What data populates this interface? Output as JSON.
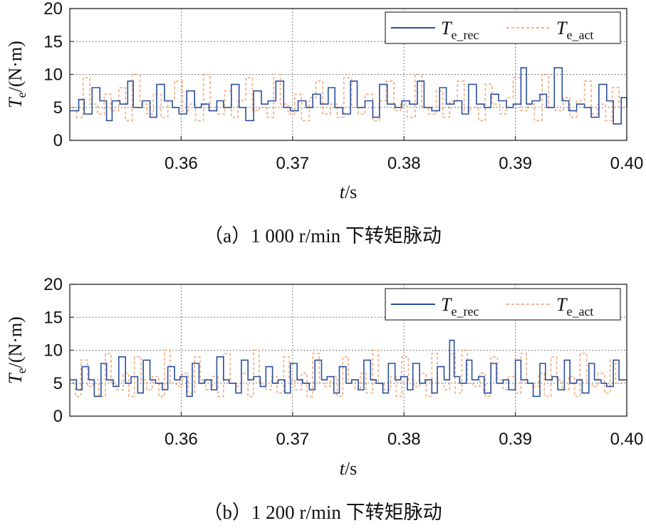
{
  "chart_data": [
    {
      "type": "line",
      "caption": "（a）1 000 r/min 下转矩脉动",
      "xlabel_var": "t",
      "xlabel_unit": "/s",
      "ylabel_var": "T",
      "ylabel_sub": "e",
      "ylabel_unit": "/(N·m)",
      "xlim": [
        0.35,
        0.4
      ],
      "ylim": [
        0,
        20
      ],
      "x_ticks": [
        "0.36",
        "0.37",
        "0.38",
        "0.39",
        "0.40"
      ],
      "y_ticks": [
        "0",
        "5",
        "10",
        "15",
        "20"
      ],
      "grid": true,
      "legend_position": "top-right",
      "series": [
        {
          "name": "T_e_rec",
          "legend_main": "T",
          "legend_sub": "e_rec",
          "color": "#2b4f9e",
          "style": "solid",
          "x": [
            0.35,
            0.3508,
            0.3513,
            0.352,
            0.3527,
            0.3533,
            0.3538,
            0.3545,
            0.3552,
            0.3557,
            0.3565,
            0.3572,
            0.3578,
            0.3585,
            0.3592,
            0.3598,
            0.3605,
            0.3612,
            0.3618,
            0.3625,
            0.3632,
            0.3638,
            0.3645,
            0.3652,
            0.3658,
            0.3665,
            0.3672,
            0.3678,
            0.3685,
            0.3692,
            0.3698,
            0.3705,
            0.3712,
            0.3718,
            0.3725,
            0.3732,
            0.3738,
            0.3745,
            0.3752,
            0.3758,
            0.3765,
            0.3772,
            0.3778,
            0.3785,
            0.3792,
            0.3798,
            0.3805,
            0.3812,
            0.3818,
            0.3825,
            0.3832,
            0.3838,
            0.3845,
            0.3852,
            0.3858,
            0.3865,
            0.3872,
            0.3878,
            0.3885,
            0.3892,
            0.3898,
            0.3905,
            0.391,
            0.3915,
            0.3922,
            0.3928,
            0.3935,
            0.3942,
            0.3948,
            0.3955,
            0.3962,
            0.3968,
            0.3975,
            0.3982,
            0.3988,
            0.3995,
            0.4
          ],
          "y": [
            4.5,
            6.2,
            4.0,
            8.0,
            6.0,
            3.0,
            6.0,
            5.5,
            9.0,
            5.0,
            6.0,
            3.5,
            8.5,
            6.0,
            5.0,
            4.0,
            7.5,
            5.0,
            5.5,
            4.5,
            6.0,
            5.0,
            8.5,
            5.0,
            3.0,
            7.5,
            5.5,
            6.0,
            9.0,
            5.0,
            4.5,
            6.0,
            5.0,
            7.0,
            5.5,
            8.0,
            5.0,
            4.0,
            9.0,
            5.0,
            6.0,
            3.5,
            8.5,
            5.5,
            5.0,
            6.0,
            5.5,
            9.0,
            5.0,
            4.5,
            8.0,
            5.5,
            6.0,
            4.0,
            8.5,
            5.5,
            5.0,
            7.0,
            6.0,
            5.0,
            5.5,
            11.0,
            5.5,
            6.0,
            7.0,
            5.0,
            11.0,
            6.0,
            4.5,
            5.5,
            5.0,
            3.5,
            8.5,
            6.0,
            2.5,
            6.5,
            5.0
          ]
        },
        {
          "name": "T_e_act",
          "legend_main": "T",
          "legend_sub": "e_act",
          "color": "#f2b48c",
          "style": "dashed",
          "x": [
            0.35,
            0.3506,
            0.3512,
            0.3518,
            0.3525,
            0.3531,
            0.3537,
            0.3544,
            0.355,
            0.3556,
            0.3563,
            0.3569,
            0.3575,
            0.3582,
            0.3588,
            0.3594,
            0.3601,
            0.3607,
            0.3613,
            0.362,
            0.3626,
            0.3632,
            0.3639,
            0.3645,
            0.3651,
            0.3658,
            0.3664,
            0.367,
            0.3677,
            0.3683,
            0.3689,
            0.3696,
            0.3702,
            0.3708,
            0.3715,
            0.3721,
            0.3727,
            0.3734,
            0.374,
            0.3746,
            0.3753,
            0.3759,
            0.3765,
            0.3772,
            0.3778,
            0.3784,
            0.3791,
            0.3797,
            0.3803,
            0.381,
            0.3816,
            0.3822,
            0.3829,
            0.3835,
            0.3841,
            0.3848,
            0.3854,
            0.386,
            0.3867,
            0.3873,
            0.3879,
            0.3886,
            0.3892,
            0.3898,
            0.3905,
            0.3911,
            0.3917,
            0.3924,
            0.393,
            0.3936,
            0.3943,
            0.3949,
            0.3955,
            0.3962,
            0.3968,
            0.3974,
            0.3981,
            0.3987,
            0.3993,
            0.4
          ],
          "y": [
            5.0,
            3.5,
            9.5,
            5.5,
            4.0,
            7.0,
            4.5,
            8.0,
            3.0,
            10.0,
            5.5,
            4.0,
            7.0,
            3.5,
            6.0,
            9.0,
            4.5,
            5.5,
            3.0,
            10.0,
            5.0,
            4.0,
            7.5,
            3.5,
            6.0,
            9.5,
            4.5,
            5.0,
            3.5,
            10.0,
            5.5,
            4.0,
            7.0,
            3.0,
            6.5,
            9.0,
            4.0,
            5.5,
            3.5,
            9.5,
            5.0,
            4.0,
            7.0,
            3.0,
            6.0,
            9.0,
            4.5,
            5.5,
            3.5,
            10.0,
            5.0,
            4.0,
            7.5,
            3.5,
            6.0,
            9.0,
            4.5,
            5.0,
            3.0,
            8.5,
            5.5,
            4.0,
            6.5,
            9.5,
            4.5,
            5.5,
            3.0,
            10.0,
            5.0,
            4.5,
            6.5,
            3.5,
            6.0,
            9.0,
            4.0,
            5.5,
            3.0,
            8.0,
            5.0,
            5.5
          ]
        }
      ]
    },
    {
      "type": "line",
      "caption": "（b）1 200 r/min 下转矩脉动",
      "xlabel_var": "t",
      "xlabel_unit": "/s",
      "ylabel_var": "T",
      "ylabel_sub": "e",
      "ylabel_unit": "/(N·m)",
      "xlim": [
        0.35,
        0.4
      ],
      "ylim": [
        0,
        20
      ],
      "x_ticks": [
        "0.36",
        "0.37",
        "0.38",
        "0.39",
        "0.40"
      ],
      "y_ticks": [
        "0",
        "5",
        "10",
        "15",
        "20"
      ],
      "grid": true,
      "legend_position": "top-right",
      "series": [
        {
          "name": "T_e_rec",
          "legend_main": "T",
          "legend_sub": "e_rec",
          "color": "#2b4f9e",
          "style": "solid",
          "x": [
            0.35,
            0.3506,
            0.3511,
            0.3517,
            0.3522,
            0.3528,
            0.3533,
            0.3539,
            0.3544,
            0.355,
            0.3555,
            0.3561,
            0.3566,
            0.3572,
            0.3577,
            0.3583,
            0.3588,
            0.3594,
            0.3599,
            0.3605,
            0.361,
            0.3616,
            0.3621,
            0.3627,
            0.3632,
            0.3638,
            0.3643,
            0.3649,
            0.3654,
            0.366,
            0.3665,
            0.3671,
            0.3676,
            0.3682,
            0.3687,
            0.3693,
            0.3698,
            0.3704,
            0.3709,
            0.3715,
            0.372,
            0.3726,
            0.3731,
            0.3737,
            0.3742,
            0.3748,
            0.3753,
            0.3759,
            0.3764,
            0.377,
            0.3775,
            0.3781,
            0.3786,
            0.3792,
            0.3797,
            0.3803,
            0.3808,
            0.3814,
            0.3819,
            0.3825,
            0.383,
            0.3836,
            0.3841,
            0.3845,
            0.385,
            0.3856,
            0.3861,
            0.3867,
            0.3872,
            0.3878,
            0.3883,
            0.3889,
            0.3894,
            0.39,
            0.3905,
            0.3911,
            0.3916,
            0.3922,
            0.3927,
            0.3933,
            0.3938,
            0.3944,
            0.3949,
            0.3955,
            0.396,
            0.3966,
            0.3971,
            0.3977,
            0.3982,
            0.3988,
            0.3993,
            0.4
          ],
          "y": [
            5.5,
            4.0,
            7.5,
            5.5,
            3.0,
            8.0,
            5.5,
            4.5,
            9.0,
            5.0,
            6.0,
            3.5,
            8.5,
            5.5,
            5.0,
            4.0,
            7.5,
            5.5,
            6.0,
            3.0,
            8.0,
            5.0,
            5.5,
            4.0,
            9.0,
            5.5,
            5.0,
            3.5,
            8.5,
            5.5,
            6.0,
            4.5,
            7.5,
            5.0,
            5.5,
            3.5,
            8.0,
            5.5,
            5.0,
            4.0,
            8.5,
            5.5,
            6.0,
            3.5,
            7.5,
            5.0,
            5.5,
            4.0,
            8.5,
            5.5,
            5.0,
            3.5,
            8.0,
            5.5,
            6.0,
            4.0,
            8.0,
            5.0,
            5.5,
            3.5,
            7.5,
            5.5,
            11.5,
            6.0,
            5.0,
            8.5,
            5.5,
            6.0,
            3.5,
            8.0,
            5.0,
            5.5,
            4.0,
            8.5,
            5.5,
            5.0,
            3.0,
            8.0,
            5.5,
            6.0,
            4.0,
            8.5,
            5.0,
            5.5,
            3.5,
            8.0,
            5.5,
            5.0,
            4.5,
            8.5,
            5.5,
            5.5
          ]
        },
        {
          "name": "T_e_act",
          "legend_main": "T",
          "legend_sub": "e_act",
          "color": "#f2b48c",
          "style": "dashed",
          "x": [
            0.35,
            0.3505,
            0.351,
            0.3516,
            0.3521,
            0.3526,
            0.3532,
            0.3537,
            0.3542,
            0.3548,
            0.3553,
            0.3558,
            0.3564,
            0.3569,
            0.3574,
            0.358,
            0.3585,
            0.359,
            0.3596,
            0.3601,
            0.3606,
            0.3612,
            0.3617,
            0.3622,
            0.3628,
            0.3633,
            0.3638,
            0.3644,
            0.3649,
            0.3654,
            0.366,
            0.3665,
            0.367,
            0.3676,
            0.3681,
            0.3686,
            0.3692,
            0.3697,
            0.3702,
            0.3708,
            0.3713,
            0.3718,
            0.3724,
            0.3729,
            0.3734,
            0.374,
            0.3745,
            0.375,
            0.3756,
            0.3761,
            0.3766,
            0.3772,
            0.3777,
            0.3782,
            0.3788,
            0.3793,
            0.3798,
            0.3804,
            0.3809,
            0.3814,
            0.382,
            0.3825,
            0.383,
            0.3836,
            0.3841,
            0.3846,
            0.3852,
            0.3857,
            0.3862,
            0.3868,
            0.3873,
            0.3878,
            0.3884,
            0.3889,
            0.3894,
            0.39,
            0.3905,
            0.391,
            0.3916,
            0.3921,
            0.3926,
            0.3932,
            0.3937,
            0.3942,
            0.3948,
            0.3953,
            0.3958,
            0.3964,
            0.3969,
            0.3974,
            0.398,
            0.3985,
            0.399,
            0.3996,
            0.4
          ],
          "y": [
            5.0,
            3.0,
            8.5,
            4.5,
            5.5,
            3.0,
            9.5,
            5.0,
            4.0,
            6.5,
            3.0,
            9.0,
            5.5,
            4.0,
            6.0,
            3.0,
            10.0,
            5.0,
            4.5,
            6.5,
            3.5,
            9.0,
            5.5,
            4.0,
            6.0,
            3.0,
            9.5,
            5.0,
            4.5,
            6.5,
            3.0,
            10.0,
            5.0,
            4.0,
            6.0,
            3.5,
            9.0,
            5.5,
            4.0,
            6.5,
            3.0,
            9.5,
            5.0,
            4.5,
            6.0,
            3.0,
            9.0,
            5.5,
            4.0,
            6.5,
            3.5,
            10.0,
            5.0,
            4.0,
            6.0,
            3.0,
            9.0,
            5.5,
            4.5,
            6.5,
            3.0,
            9.5,
            5.0,
            4.0,
            9.5,
            3.5,
            10.0,
            5.0,
            4.5,
            6.5,
            3.0,
            9.0,
            5.5,
            4.0,
            6.0,
            3.5,
            9.5,
            5.0,
            4.5,
            6.5,
            3.0,
            9.0,
            5.5,
            4.0,
            6.0,
            3.0,
            9.5,
            5.0,
            4.5,
            6.5,
            3.5,
            8.5,
            5.0,
            5.5,
            5.0
          ]
        }
      ]
    }
  ]
}
